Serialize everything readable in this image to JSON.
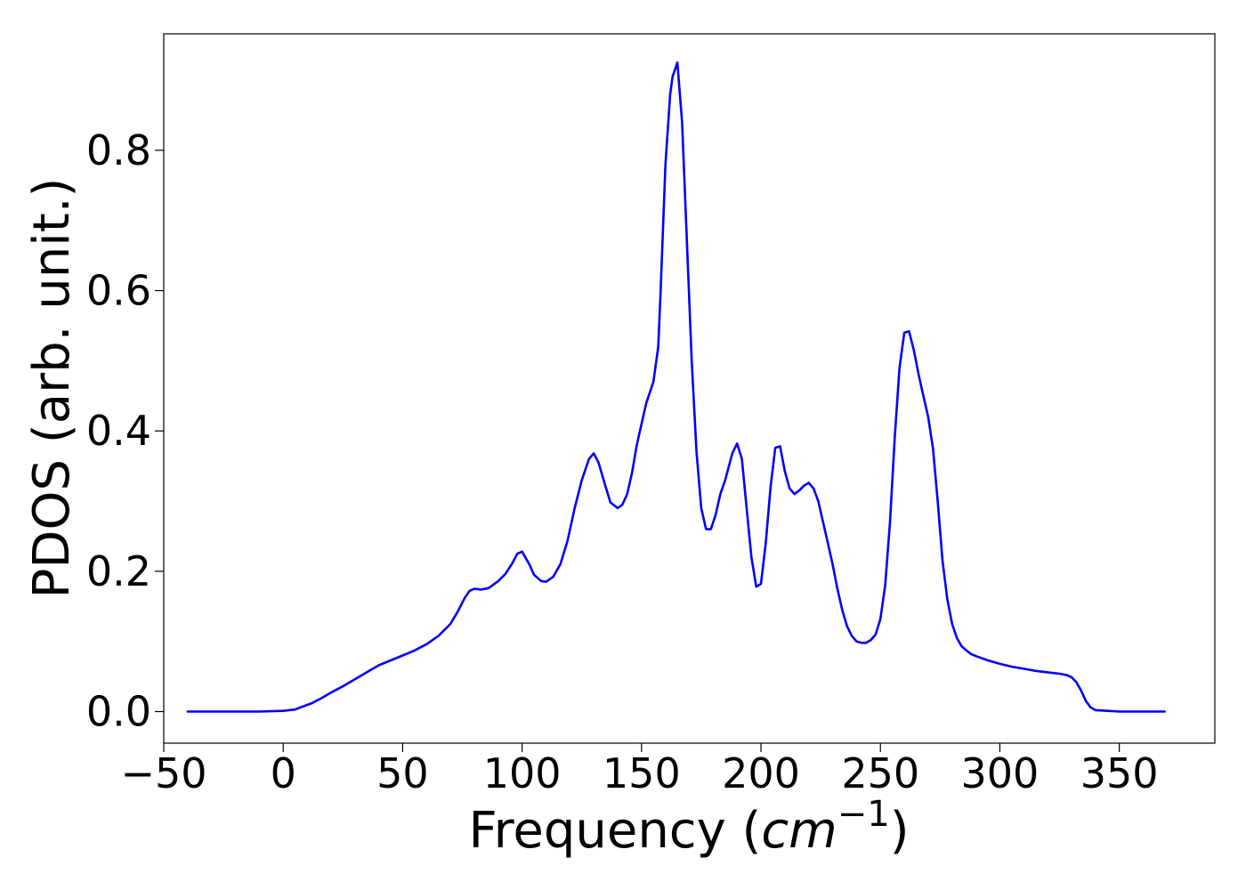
{
  "chart_data": {
    "type": "line",
    "title": "",
    "xlabel": {
      "main": "Frequency (",
      "unit_base": "cm",
      "unit_exp": "−1",
      "close": ")"
    },
    "ylabel": "PDOS (arb. unit.)",
    "xlim": [
      -50,
      390
    ],
    "ylim": [
      -0.045,
      0.966
    ],
    "xticks": [
      -50,
      0,
      50,
      100,
      150,
      200,
      250,
      300,
      350
    ],
    "xtick_labels": [
      "−50",
      "0",
      "50",
      "100",
      "150",
      "200",
      "250",
      "300",
      "350"
    ],
    "yticks": [
      0.0,
      0.2,
      0.4,
      0.6,
      0.8
    ],
    "ytick_labels": [
      "0.0",
      "0.2",
      "0.4",
      "0.6",
      "0.8"
    ],
    "grid": false,
    "series": [
      {
        "color": "#0000ff",
        "x": [
          -40,
          -30,
          -20,
          -10,
          0,
          5,
          8,
          12,
          16,
          20,
          25,
          30,
          35,
          40,
          45,
          50,
          55,
          60,
          65,
          70,
          73,
          76,
          78,
          80,
          83,
          86,
          90,
          93,
          96,
          98,
          100,
          103,
          105,
          108,
          110,
          113,
          116,
          119,
          122,
          125,
          128,
          130,
          132,
          135,
          137,
          140,
          142,
          144,
          146,
          148,
          150,
          152,
          155,
          157,
          158,
          160,
          162,
          163,
          165,
          167,
          169,
          171,
          173,
          175,
          177,
          179,
          181,
          183,
          185,
          188,
          190,
          192,
          194,
          196,
          198,
          200,
          202,
          204,
          206,
          208,
          210,
          212,
          214,
          216,
          218,
          220,
          222,
          224,
          226,
          228,
          230,
          232,
          234,
          236,
          238,
          240,
          242,
          244,
          246,
          248,
          250,
          252,
          254,
          256,
          258,
          260,
          262,
          264,
          266,
          268,
          270,
          272,
          274,
          276,
          278,
          280,
          282,
          284,
          286,
          288,
          290,
          295,
          300,
          305,
          310,
          315,
          320,
          325,
          328,
          330,
          332,
          334,
          336,
          338,
          340,
          345,
          350,
          360,
          369
        ],
        "y": [
          0.0,
          0.0,
          0.0,
          0.0,
          0.001,
          0.003,
          0.007,
          0.012,
          0.019,
          0.027,
          0.036,
          0.046,
          0.056,
          0.066,
          0.073,
          0.08,
          0.087,
          0.096,
          0.108,
          0.125,
          0.142,
          0.162,
          0.172,
          0.175,
          0.174,
          0.176,
          0.186,
          0.196,
          0.212,
          0.225,
          0.228,
          0.21,
          0.195,
          0.186,
          0.185,
          0.192,
          0.21,
          0.243,
          0.29,
          0.33,
          0.36,
          0.368,
          0.355,
          0.32,
          0.298,
          0.29,
          0.295,
          0.31,
          0.34,
          0.38,
          0.41,
          0.44,
          0.47,
          0.52,
          0.6,
          0.78,
          0.88,
          0.905,
          0.925,
          0.84,
          0.67,
          0.5,
          0.37,
          0.29,
          0.26,
          0.26,
          0.28,
          0.31,
          0.33,
          0.368,
          0.382,
          0.36,
          0.29,
          0.22,
          0.178,
          0.182,
          0.24,
          0.32,
          0.376,
          0.378,
          0.342,
          0.318,
          0.31,
          0.315,
          0.322,
          0.326,
          0.318,
          0.3,
          0.27,
          0.24,
          0.21,
          0.175,
          0.145,
          0.122,
          0.108,
          0.1,
          0.098,
          0.098,
          0.102,
          0.11,
          0.132,
          0.18,
          0.27,
          0.39,
          0.49,
          0.54,
          0.542,
          0.515,
          0.48,
          0.45,
          0.42,
          0.375,
          0.3,
          0.215,
          0.16,
          0.125,
          0.105,
          0.093,
          0.087,
          0.082,
          0.079,
          0.073,
          0.068,
          0.064,
          0.061,
          0.058,
          0.056,
          0.054,
          0.052,
          0.049,
          0.042,
          0.03,
          0.015,
          0.006,
          0.002,
          0.001,
          0.0,
          0.0,
          0.0
        ]
      }
    ]
  }
}
